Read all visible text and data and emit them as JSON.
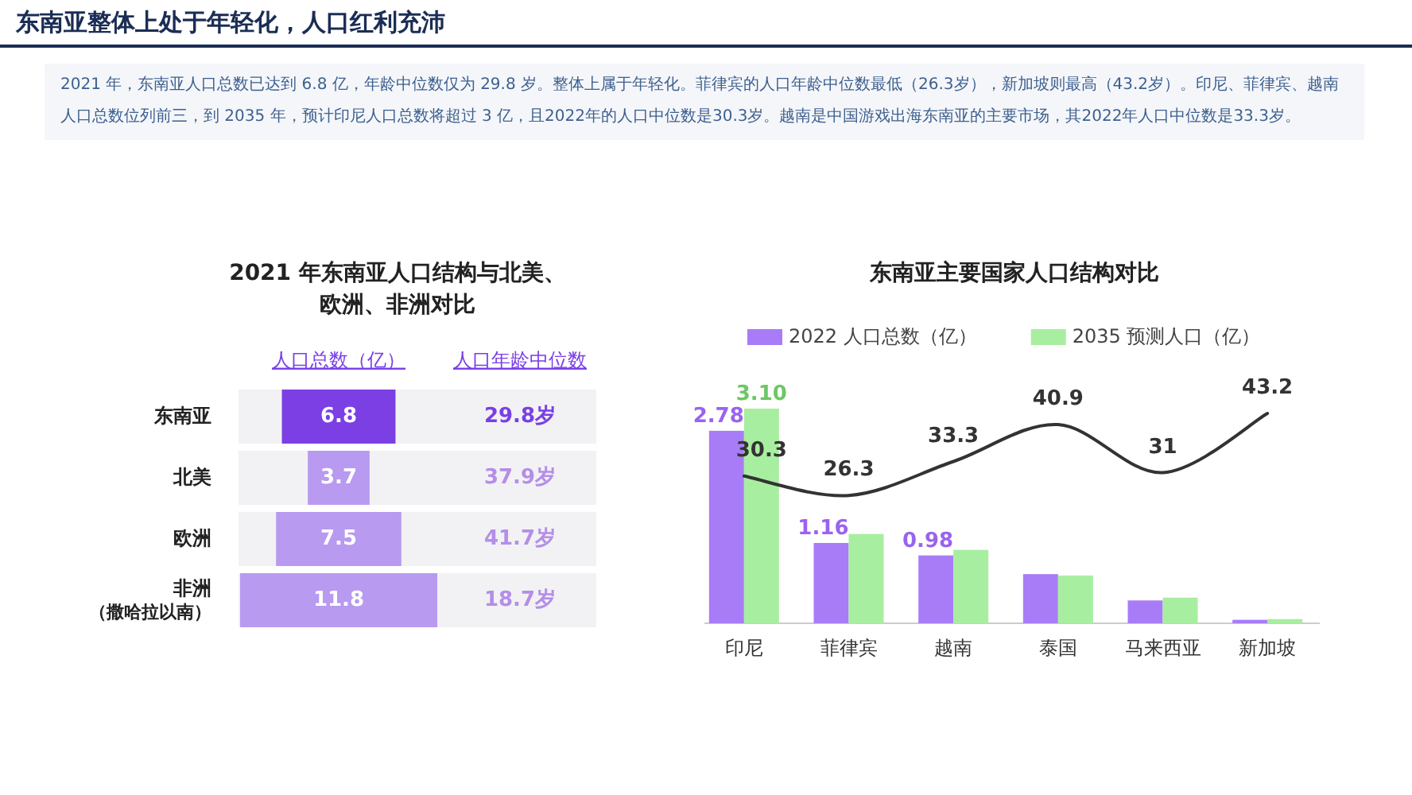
{
  "chart_data": [
    {
      "type": "other",
      "title": "东南亚整体上处于年轻化，人口红利充沛",
      "subtitle": "2021 年，东南亚人口总数已达到 6.8 亿，年龄中位数仅为 29.8 岁。整体上属于年轻化。菲律宾的人口年龄中位数最低（26.3岁），新加坡则最高（43.2岁）。印尼、菲律宾、越南人口总数位列前三，到 2035 年，预计印尼人口总数将超过 3 亿，且2022年的人口中位数是30.3岁。越南是中国游戏出海东南亚的主要市场，其2022年人口中位数是33.3岁。"
    },
    {
      "type": "other",
      "title": "2021 年东南亚人口结构与北美、欧洲、非洲对比",
      "xlabel": "人口总数（亿）",
      "categories": [
        "东南亚",
        "北美",
        "欧洲",
        "非洲（撒哈拉以南）"
      ],
      "values": [
        6.8,
        3.7,
        7.5,
        11.8
      ],
      "colors": [
        "#7b3fe4",
        "#b89af0",
        "#b89af0",
        "#b89af0"
      ],
      "data_labels": true
    },
    {
      "type": "other",
      "xlabel": "人口年龄中位数",
      "categories": [
        null,
        null,
        null,
        null
      ],
      "values": [
        29.8,
        37.9,
        41.7,
        18.7
      ],
      "value_labels": [
        "29.8岁",
        "37.9岁",
        "41.7岁",
        "18.7岁"
      ],
      "colors": [
        "#7a3fe4",
        "#b48ee8",
        "#b48ee8",
        "#b48ee8"
      ]
    },
    {
      "type": "bar",
      "title": "东南亚主要国家人口结构对比",
      "categories": [
        "印尼",
        "菲律宾",
        "越南",
        "泰国",
        "马来西亚",
        "新加坡"
      ],
      "legend": "top",
      "tick_labels": "x",
      "series": [
        {
          "name": "2022 人口总数（亿）",
          "color": "#a97cf7",
          "values": [
            2.78,
            1.16,
            0.98,
            0.71,
            0.33,
            0.05
          ],
          "value_labels": [
            "2.78",
            "1.16",
            "0.98",
            null,
            null,
            null
          ]
        },
        {
          "name": "2035 预测人口（亿）",
          "color": "#a8eea0",
          "values": [
            3.1,
            1.29,
            1.06,
            0.69,
            0.37,
            0.06
          ],
          "value_labels": [
            "3.10",
            null,
            null,
            null,
            null,
            null
          ]
        },
        {
          "type": "line",
          "axis": "y2",
          "color": "#333333",
          "values": [
            30.3,
            26.3,
            33.3,
            40.9,
            31,
            43.2
          ],
          "value_labels": [
            "30.3",
            "26.3",
            "33.3",
            "40.9",
            "31",
            "43.2"
          ]
        }
      ]
    }
  ]
}
